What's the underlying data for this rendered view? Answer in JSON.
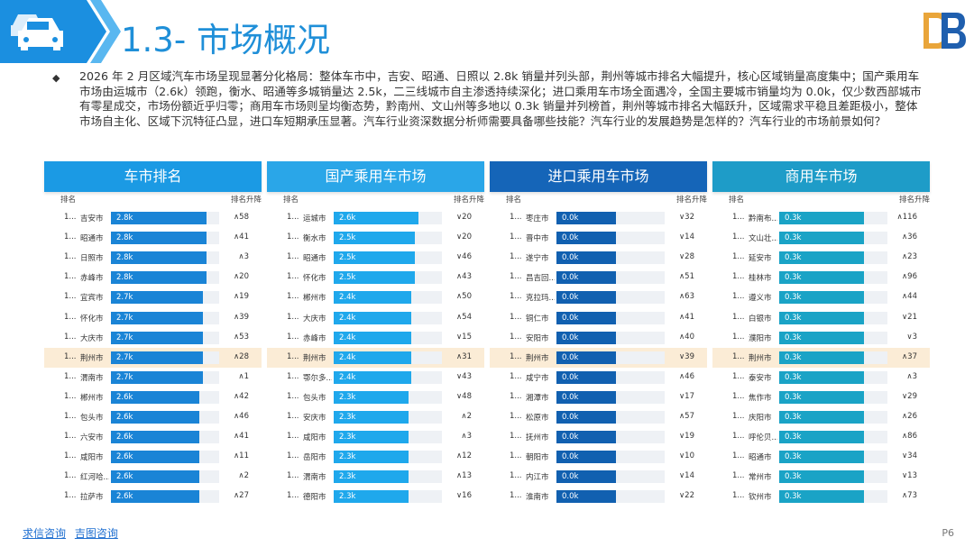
{
  "header": {
    "title": "1.3- 市场概况",
    "icon": "car-icon",
    "logo": "brand-logo",
    "accent_color": "#1f8fd8"
  },
  "summary": {
    "bullet": "◆",
    "text": "2026 年 2 月区域汽车市场呈现显著分化格局：整体车市中，吉安、昭通、日照以 2.8k 销量并列头部，荆州等城市排名大幅提升，核心区域销量高度集中；国产乘用车市场由运城市（2.6k）领跑，衡水、昭通等多城销量达 2.5k，二三线城市自主渗透持续深化；进口乘用车市场全面遇冷，全国主要城市销量均为 0.0k，仅少数西部城市有零星成交，市场份额近乎归零；商用车市场则呈均衡态势，黔南州、文山州等多地以 0.3k 销量并列榜首，荆州等城市排名大幅跃升，区域需求平稳且差距极小，整体市场自主化、区域下沉特征凸显，进口车短期承压显著。汽车行业资深数据分析师需要具备哪些技能？汽车行业的发展趋势是怎样的？汽车行业的市场前景如何？"
  },
  "panels": [
    {
      "title": "车市排名",
      "color": "#1b9ae4",
      "bar_color": "#1a84d6",
      "col_left": "排名",
      "col_right": "排名升降",
      "rows": [
        {
          "rank": "1...",
          "city": "吉安市",
          "value": "2.8k",
          "change": "∧58",
          "fill": 0.88
        },
        {
          "rank": "1...",
          "city": "昭通市",
          "value": "2.8k",
          "change": "∧41",
          "fill": 0.88
        },
        {
          "rank": "1...",
          "city": "日照市",
          "value": "2.8k",
          "change": "∧3",
          "fill": 0.88
        },
        {
          "rank": "1...",
          "city": "赤峰市",
          "value": "2.8k",
          "change": "∧20",
          "fill": 0.88
        },
        {
          "rank": "1...",
          "city": "宜宾市",
          "value": "2.7k",
          "change": "∧19",
          "fill": 0.85
        },
        {
          "rank": "1...",
          "city": "怀化市",
          "value": "2.7k",
          "change": "∧39",
          "fill": 0.85
        },
        {
          "rank": "1...",
          "city": "大庆市",
          "value": "2.7k",
          "change": "∧53",
          "fill": 0.85
        },
        {
          "rank": "1...",
          "city": "荆州市",
          "value": "2.7k",
          "change": "∧28",
          "fill": 0.85,
          "highlight": true
        },
        {
          "rank": "1...",
          "city": "渭南市",
          "value": "2.7k",
          "change": "∧1",
          "fill": 0.85
        },
        {
          "rank": "1...",
          "city": "郴州市",
          "value": "2.6k",
          "change": "∧42",
          "fill": 0.82
        },
        {
          "rank": "1...",
          "city": "包头市",
          "value": "2.6k",
          "change": "∧46",
          "fill": 0.82
        },
        {
          "rank": "1...",
          "city": "六安市",
          "value": "2.6k",
          "change": "∧41",
          "fill": 0.82
        },
        {
          "rank": "1...",
          "city": "咸阳市",
          "value": "2.6k",
          "change": "∧11",
          "fill": 0.82
        },
        {
          "rank": "1...",
          "city": "红河哈...",
          "value": "2.6k",
          "change": "∧2",
          "fill": 0.82
        },
        {
          "rank": "1...",
          "city": "拉萨市",
          "value": "2.6k",
          "change": "∧27",
          "fill": 0.82
        }
      ]
    },
    {
      "title": "国产乘用车市场",
      "color": "#2aa6e8",
      "bar_color": "#1fa8ec",
      "col_left": "排名",
      "col_right": "排名升降",
      "rows": [
        {
          "rank": "1...",
          "city": "运城市",
          "value": "2.6k",
          "change": "∨20",
          "fill": 0.78
        },
        {
          "rank": "1...",
          "city": "衡水市",
          "value": "2.5k",
          "change": "∨20",
          "fill": 0.75
        },
        {
          "rank": "1...",
          "city": "昭通市",
          "value": "2.5k",
          "change": "∨46",
          "fill": 0.75
        },
        {
          "rank": "1...",
          "city": "怀化市",
          "value": "2.5k",
          "change": "∧43",
          "fill": 0.75
        },
        {
          "rank": "1...",
          "city": "郴州市",
          "value": "2.4k",
          "change": "∧50",
          "fill": 0.72
        },
        {
          "rank": "1...",
          "city": "大庆市",
          "value": "2.4k",
          "change": "∧54",
          "fill": 0.72
        },
        {
          "rank": "1...",
          "city": "赤峰市",
          "value": "2.4k",
          "change": "∨15",
          "fill": 0.72
        },
        {
          "rank": "1...",
          "city": "荆州市",
          "value": "2.4k",
          "change": "∧31",
          "fill": 0.72,
          "highlight": true
        },
        {
          "rank": "1...",
          "city": "鄂尔多...",
          "value": "2.4k",
          "change": "∨43",
          "fill": 0.72
        },
        {
          "rank": "1...",
          "city": "包头市",
          "value": "2.3k",
          "change": "∨48",
          "fill": 0.69
        },
        {
          "rank": "1...",
          "city": "安庆市",
          "value": "2.3k",
          "change": "∧2",
          "fill": 0.69
        },
        {
          "rank": "1...",
          "city": "咸阳市",
          "value": "2.3k",
          "change": "∧3",
          "fill": 0.69
        },
        {
          "rank": "1...",
          "city": "岳阳市",
          "value": "2.3k",
          "change": "∧12",
          "fill": 0.69
        },
        {
          "rank": "1...",
          "city": "渭南市",
          "value": "2.3k",
          "change": "∧13",
          "fill": 0.69
        },
        {
          "rank": "1...",
          "city": "德阳市",
          "value": "2.3k",
          "change": "∨16",
          "fill": 0.69
        }
      ]
    },
    {
      "title": "进口乘用车市场",
      "color": "#1565b8",
      "bar_color": "#1160b0",
      "col_left": "排名",
      "col_right": "排名升降",
      "rows": [
        {
          "rank": "1...",
          "city": "枣庄市",
          "value": "0.0k",
          "change": "∨32",
          "fill": 0.55
        },
        {
          "rank": "1...",
          "city": "晋中市",
          "value": "0.0k",
          "change": "∨14",
          "fill": 0.55
        },
        {
          "rank": "1...",
          "city": "遂宁市",
          "value": "0.0k",
          "change": "∨28",
          "fill": 0.55
        },
        {
          "rank": "1...",
          "city": "昌吉回...",
          "value": "0.0k",
          "change": "∧51",
          "fill": 0.55
        },
        {
          "rank": "1...",
          "city": "克拉玛...",
          "value": "0.0k",
          "change": "∧63",
          "fill": 0.55
        },
        {
          "rank": "1...",
          "city": "铜仁市",
          "value": "0.0k",
          "change": "∧41",
          "fill": 0.55
        },
        {
          "rank": "1...",
          "city": "安阳市",
          "value": "0.0k",
          "change": "∧40",
          "fill": 0.55
        },
        {
          "rank": "1...",
          "city": "荆州市",
          "value": "0.0k",
          "change": "∨39",
          "fill": 0.55,
          "highlight": true
        },
        {
          "rank": "1...",
          "city": "咸宁市",
          "value": "0.0k",
          "change": "∧46",
          "fill": 0.55
        },
        {
          "rank": "1...",
          "city": "湘潭市",
          "value": "0.0k",
          "change": "∨17",
          "fill": 0.55
        },
        {
          "rank": "1...",
          "city": "松原市",
          "value": "0.0k",
          "change": "∧57",
          "fill": 0.55
        },
        {
          "rank": "1...",
          "city": "抚州市",
          "value": "0.0k",
          "change": "∨19",
          "fill": 0.55
        },
        {
          "rank": "1...",
          "city": "朝阳市",
          "value": "0.0k",
          "change": "∨10",
          "fill": 0.55
        },
        {
          "rank": "1...",
          "city": "内江市",
          "value": "0.0k",
          "change": "∨14",
          "fill": 0.55
        },
        {
          "rank": "1...",
          "city": "淮南市",
          "value": "0.0k",
          "change": "∨22",
          "fill": 0.55
        }
      ]
    },
    {
      "title": "商用车市场",
      "color": "#1e9cc8",
      "bar_color": "#1aa3c6",
      "col_left": "排名",
      "col_right": "排名升降",
      "rows": [
        {
          "rank": "1...",
          "city": "黔南布...",
          "value": "0.3k",
          "change": "∧116",
          "fill": 0.78
        },
        {
          "rank": "1...",
          "city": "文山壮...",
          "value": "0.3k",
          "change": "∧36",
          "fill": 0.78
        },
        {
          "rank": "1...",
          "city": "延安市",
          "value": "0.3k",
          "change": "∧23",
          "fill": 0.78
        },
        {
          "rank": "1...",
          "city": "桂林市",
          "value": "0.3k",
          "change": "∧96",
          "fill": 0.78
        },
        {
          "rank": "1...",
          "city": "遵义市",
          "value": "0.3k",
          "change": "∧44",
          "fill": 0.78
        },
        {
          "rank": "1...",
          "city": "白银市",
          "value": "0.3k",
          "change": "∨21",
          "fill": 0.78
        },
        {
          "rank": "1...",
          "city": "濮阳市",
          "value": "0.3k",
          "change": "∨3",
          "fill": 0.78
        },
        {
          "rank": "1...",
          "city": "荆州市",
          "value": "0.3k",
          "change": "∧37",
          "fill": 0.78,
          "highlight": true
        },
        {
          "rank": "1...",
          "city": "泰安市",
          "value": "0.3k",
          "change": "∧3",
          "fill": 0.78
        },
        {
          "rank": "1...",
          "city": "焦作市",
          "value": "0.3k",
          "change": "∨29",
          "fill": 0.78
        },
        {
          "rank": "1...",
          "city": "庆阳市",
          "value": "0.3k",
          "change": "∧26",
          "fill": 0.78
        },
        {
          "rank": "1...",
          "city": "呼伦贝...",
          "value": "0.3k",
          "change": "∧86",
          "fill": 0.78
        },
        {
          "rank": "1...",
          "city": "昭通市",
          "value": "0.3k",
          "change": "∨34",
          "fill": 0.78
        },
        {
          "rank": "1...",
          "city": "常州市",
          "value": "0.3k",
          "change": "∨13",
          "fill": 0.78
        },
        {
          "rank": "1...",
          "city": "钦州市",
          "value": "0.3k",
          "change": "∧73",
          "fill": 0.78
        }
      ]
    }
  ],
  "footer": {
    "link1": "求信咨询",
    "link2": "吉图咨询",
    "page": "P6"
  }
}
